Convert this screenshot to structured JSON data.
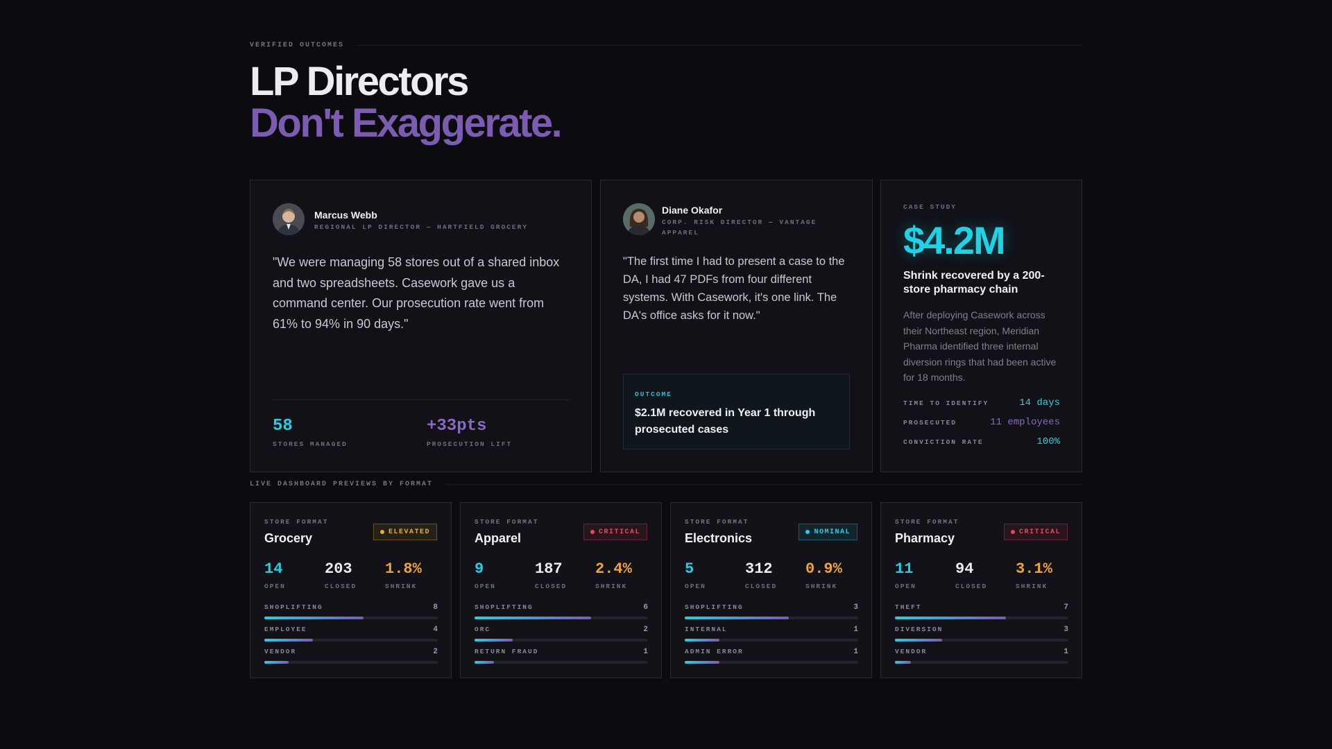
{
  "section1": {
    "eyebrow": "VERIFIED OUTCOMES"
  },
  "hero": {
    "line1": "LP Directors",
    "line2": "Don't Exaggerate."
  },
  "testimonials": [
    {
      "name": "Marcus Webb",
      "role": "REGIONAL LP DIRECTOR — HARTFIELD GROCERY",
      "quote": "\"We were managing 58 stores out of a shared inbox and two spreadsheets. Casework gave us a command center. Our prosecution rate went from 61% to 94% in 90 days.\"",
      "stats": [
        {
          "value": "58",
          "label": "STORES MANAGED",
          "color": "#1fd3e6"
        },
        {
          "value": "+33pts",
          "label": "PROSECUTION LIFT",
          "color": "#8b68c4"
        }
      ]
    },
    {
      "name": "Diane Okafor",
      "role": "CORP. RISK DIRECTOR — VANTAGE APPAREL",
      "quote": "\"The first time I had to present a case to the DA, I had 47 PDFs from four different systems. With Casework, it's one link. The DA's office asks for it now.\"",
      "outcome_label": "OUTCOME",
      "outcome_text": "$2.1M recovered in Year 1 through prosecuted cases"
    }
  ],
  "case_study": {
    "label": "CASE STUDY",
    "amount": "$4.2M",
    "headline": "Shrink recovered by a 200-store pharmacy chain",
    "body": "After deploying Casework across their Northeast region, Meridian Pharma identified three internal diversion rings that had been active for 18 months.",
    "rows": [
      {
        "key": "TIME TO IDENTIFY",
        "value": "14 days",
        "color": "#1fd3e6"
      },
      {
        "key": "PROSECUTED",
        "value": "11 employees",
        "color": "#8b68c4"
      },
      {
        "key": "CONVICTION RATE",
        "value": "100%",
        "color": "#1fd3e6"
      }
    ]
  },
  "section2": {
    "eyebrow": "LIVE DASHBOARD PREVIEWS BY FORMAT"
  },
  "formats": [
    {
      "eyebrow": "STORE FORMAT",
      "title": "Grocery",
      "badge": "ELEVATED",
      "badge_color": "#e8b321",
      "open": "14",
      "closed": "203",
      "shrink": "1.8%",
      "open_label": "OPEN",
      "closed_label": "CLOSED",
      "shrink_label": "SHRINK",
      "bars": [
        {
          "label": "SHOPLIFTING",
          "count": "8",
          "fraction": 0.57
        },
        {
          "label": "EMPLOYEE",
          "count": "4",
          "fraction": 0.28
        },
        {
          "label": "VENDOR",
          "count": "2",
          "fraction": 0.14
        }
      ]
    },
    {
      "eyebrow": "STORE FORMAT",
      "title": "Apparel",
      "badge": "CRITICAL",
      "badge_color": "#f0435c",
      "open": "9",
      "closed": "187",
      "shrink": "2.4%",
      "open_label": "OPEN",
      "closed_label": "CLOSED",
      "shrink_label": "SHRINK",
      "bars": [
        {
          "label": "SHOPLIFTING",
          "count": "6",
          "fraction": 0.67
        },
        {
          "label": "ORC",
          "count": "2",
          "fraction": 0.22
        },
        {
          "label": "RETURN FRAUD",
          "count": "1",
          "fraction": 0.11
        }
      ]
    },
    {
      "eyebrow": "STORE FORMAT",
      "title": "Electronics",
      "badge": "NOMINAL",
      "badge_color": "#1fd3e6",
      "open": "5",
      "closed": "312",
      "shrink": "0.9%",
      "open_label": "OPEN",
      "closed_label": "CLOSED",
      "shrink_label": "SHRINK",
      "bars": [
        {
          "label": "SHOPLIFTING",
          "count": "3",
          "fraction": 0.6
        },
        {
          "label": "INTERNAL",
          "count": "1",
          "fraction": 0.2
        },
        {
          "label": "ADMIN ERROR",
          "count": "1",
          "fraction": 0.2
        }
      ]
    },
    {
      "eyebrow": "STORE FORMAT",
      "title": "Pharmacy",
      "badge": "CRITICAL",
      "badge_color": "#f0435c",
      "open": "11",
      "closed": "94",
      "shrink": "3.1%",
      "open_label": "OPEN",
      "closed_label": "CLOSED",
      "shrink_label": "SHRINK",
      "bars": [
        {
          "label": "THEFT",
          "count": "7",
          "fraction": 0.64
        },
        {
          "label": "DIVERSION",
          "count": "3",
          "fraction": 0.27
        },
        {
          "label": "VENDOR",
          "count": "1",
          "fraction": 0.09
        }
      ]
    }
  ]
}
